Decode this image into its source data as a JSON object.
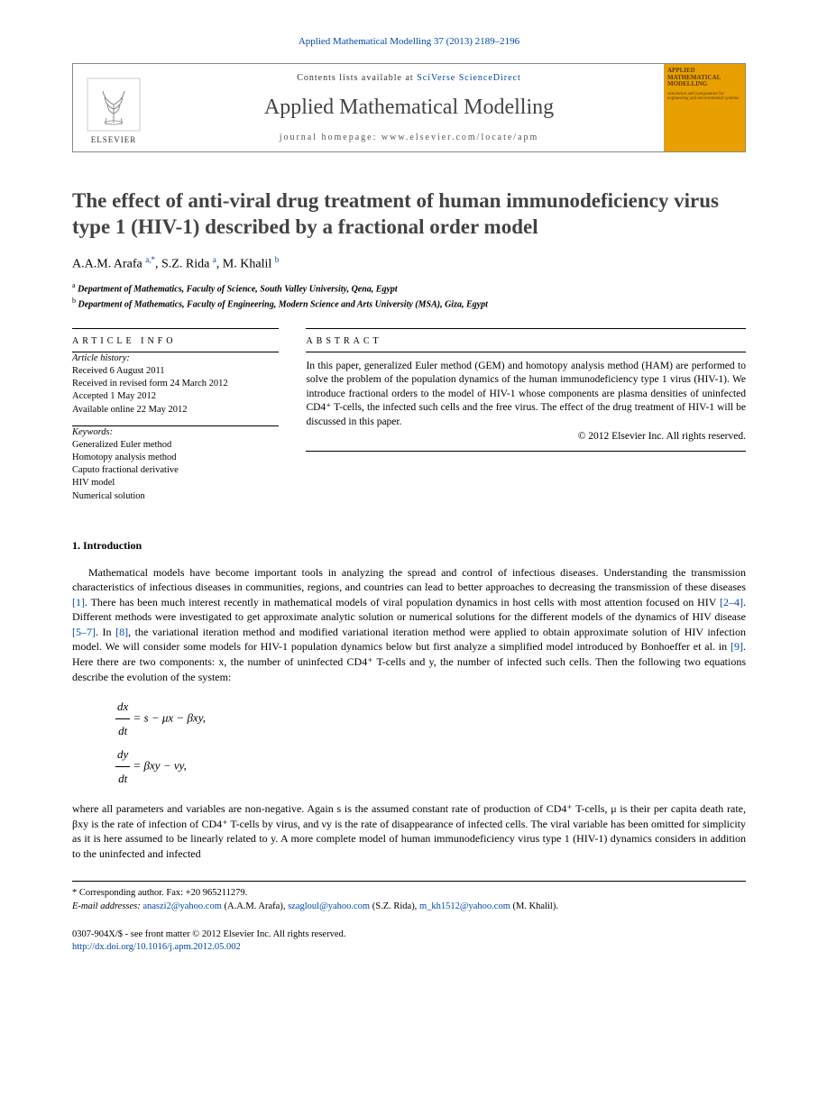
{
  "header": {
    "citation": "Applied Mathematical Modelling 37 (2013) 2189–2196",
    "contents_prefix": "Contents lists available at ",
    "contents_link": "SciVerse ScienceDirect",
    "journal_name": "Applied Mathematical Modelling",
    "homepage_label": "journal homepage: www.elsevier.com/locate/apm",
    "publisher_logo_text": "ELSEVIER",
    "cover_title": "APPLIED MATHEMATICAL MODELLING",
    "cover_sub": "simulation and computation for engineering and environmental systems"
  },
  "article": {
    "title": "The effect of anti-viral drug treatment of human immunodeficiency virus type 1 (HIV-1) described by a fractional order model",
    "authors_html": "A.A.M. Arafa <sup>a,*</sup>, S.Z. Rida <sup>a</sup>, M. Khalil <sup>b</sup>",
    "affiliations": [
      {
        "mark": "a",
        "text": "Department of Mathematics, Faculty of Science, South Valley University, Qena, Egypt"
      },
      {
        "mark": "b",
        "text": "Department of Mathematics, Faculty of Engineering, Modern Science and Arts University (MSA), Giza, Egypt"
      }
    ]
  },
  "info": {
    "label": "article info",
    "history_label": "Article history:",
    "history": [
      "Received 6 August 2011",
      "Received in revised form 24 March 2012",
      "Accepted 1 May 2012",
      "Available online 22 May 2012"
    ],
    "keywords_label": "Keywords:",
    "keywords": [
      "Generalized Euler method",
      "Homotopy analysis method",
      "Caputo fractional derivative",
      "HIV model",
      "Numerical solution"
    ]
  },
  "abstract": {
    "label": "abstract",
    "text": "In this paper, generalized Euler method (GEM) and homotopy analysis method (HAM) are performed to solve the problem of the population dynamics of the human immunodeficiency type 1 virus (HIV-1). We introduce fractional orders to the model of HIV-1 whose components are plasma densities of uninfected CD4⁺ T-cells, the infected such cells and the free virus. The effect of the drug treatment of HIV-1 will be discussed in this paper.",
    "copyright": "© 2012 Elsevier Inc. All rights reserved."
  },
  "section1": {
    "heading": "1. Introduction",
    "para": "Mathematical models have become important tools in analyzing the spread and control of infectious diseases. Understanding the transmission characteristics of infectious diseases in communities, regions, and countries can lead to better approaches to decreasing the transmission of these diseases [1]. There has been much interest recently in mathematical models of viral population dynamics in host cells with most attention focused on HIV [2–4]. Different methods were investigated to get approximate analytic solution or numerical solutions for the different models of the dynamics of HIV disease [5–7]. In [8], the variational iteration method and modified variational iteration method were applied to obtain approximate solution of HIV infection model. We will consider some models for HIV-1 population dynamics below but first analyze a simplified model introduced by Bonhoeffer et al. in [9]. Here there are two components: x, the number of uninfected CD4⁺ T-cells and y, the number of infected such cells. Then the following two equations describe the evolution of the system:",
    "eq1": "= s − μx − βxy,",
    "eq2": "= βxy − νy,",
    "para2": "where all parameters and variables are non-negative. Again s is the assumed constant rate of production of CD4⁺ T-cells, μ is their per capita death rate, βxy is the rate of infection of CD4⁺ T-cells by virus, and νy is the rate of disappearance of infected cells. The viral variable has been omitted for simplicity as it is here assumed to be linearly related to y. A more complete model of human immunodeficiency virus type 1 (HIV-1) dynamics considers in addition to the uninfected and infected",
    "refs": {
      "r1": "[1]",
      "r24": "[2–4]",
      "r57": "[5–7]",
      "r8": "[8]",
      "r9": "[9]"
    }
  },
  "footnotes": {
    "corr": "* Corresponding author. Fax: +20 965211279.",
    "email_label": "E-mail addresses: ",
    "emails": [
      {
        "addr": "anaszi2@yahoo.com",
        "who": "(A.A.M. Arafa)"
      },
      {
        "addr": "szagloul@yahoo.com",
        "who": "(S.Z. Rida)"
      },
      {
        "addr": "m_kh1512@yahoo.com",
        "who": "(M. Khalil)"
      }
    ]
  },
  "bottom": {
    "line1": "0307-904X/$ - see front matter © 2012 Elsevier Inc. All rights reserved.",
    "doi": "http://dx.doi.org/10.1016/j.apm.2012.05.002"
  },
  "colors": {
    "link": "#0047ab",
    "title_gray": "#434343",
    "cover_bg": "#e8a000"
  }
}
